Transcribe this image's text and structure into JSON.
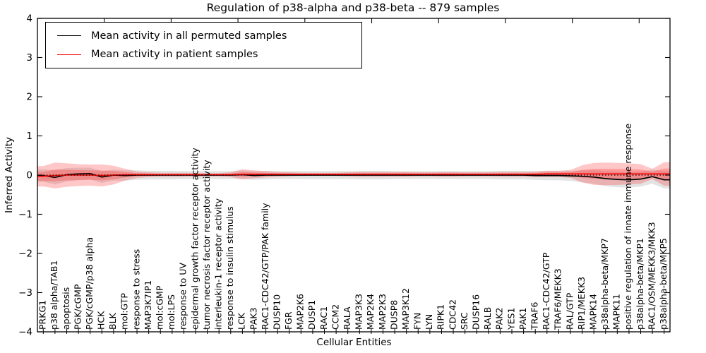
{
  "legend": {
    "entries": [
      {
        "label": "Mean activity in all permuted samples",
        "color": "#000000"
      },
      {
        "label": "Mean activity in patient samples",
        "color": "#ff0000"
      }
    ]
  },
  "chart_data": {
    "type": "line",
    "title": "Regulation of p38-alpha and p38-beta -- 879 samples",
    "xlabel": "Cellular Entities",
    "ylabel": "Inferred Activity",
    "ylim": [
      -4,
      4
    ],
    "yticks": [
      4,
      3,
      2,
      1,
      0,
      -1,
      -2,
      -3,
      -4
    ],
    "grid": false,
    "legend_position": "upper left",
    "zero_reference_line": 0,
    "band_colors": {
      "permuted": "rgba(0,0,0,0.11)",
      "patient": "rgba(255,0,0,0.22)"
    },
    "categories": [
      "PRKG1",
      "p38 alpha/TAB1",
      "apoptosis",
      "PGK/cGMP",
      "PGK/cGMP/p38 alpha",
      "HCK",
      "BLK",
      "mol:GTP",
      "response to stress",
      "MAP3K7IP1",
      "mol:cGMP",
      "mol:LPS",
      "response to UV",
      "epidermal growth factor receptor activity",
      "tumor necrosis factor receptor activity",
      "interleukin-1 receptor activity",
      "response to insulin stimulus",
      "LCK",
      "PAK3",
      "RAC1-CDC42/GTP/PAK family",
      "DUSP10",
      "FGR",
      "MAP2K6",
      "DUSP1",
      "RAC1",
      "CCM2",
      "RALA",
      "MAP3K3",
      "MAP2K4",
      "MAP2K3",
      "DUSP8",
      "MAP3K12",
      "FYN",
      "LYN",
      "RIPK1",
      "CDC42",
      "SRC",
      "DUSP16",
      "RALB",
      "PAK2",
      "YES1",
      "PAK1",
      "TRAF6",
      "RAC1-CDC42/GTP",
      "TRAF6/MEKK3",
      "RAL/GTP",
      "RIP1/MEKK3",
      "MAPK14",
      "p38alpha-beta/MKP7",
      "MAPK11",
      "positive regulation of innate immune response",
      "p38alpha-beta/MKP1",
      "RAC1/OSM/MEKK3/MKK3",
      "p38alpha-beta/MKP5"
    ],
    "series": [
      {
        "name": "Mean activity in all permuted samples",
        "color": "#000000",
        "values": [
          -0.01,
          -0.06,
          0.01,
          0.03,
          0.04,
          -0.05,
          0.0,
          -0.01,
          0.0,
          0.0,
          0.0,
          0.0,
          0.0,
          0.0,
          0.0,
          0.0,
          0.0,
          0.01,
          -0.01,
          0.0,
          0.0,
          0.0,
          0.0,
          0.0,
          0.0,
          0.0,
          0.0,
          0.0,
          0.0,
          0.0,
          0.0,
          0.0,
          0.0,
          0.0,
          0.0,
          0.0,
          0.0,
          0.0,
          0.0,
          0.0,
          0.0,
          0.0,
          -0.01,
          -0.01,
          -0.01,
          -0.02,
          -0.03,
          -0.05,
          -0.09,
          -0.11,
          -0.12,
          -0.1,
          -0.04,
          -0.12
        ],
        "std": [
          0.16,
          0.18,
          0.17,
          0.16,
          0.15,
          0.15,
          0.14,
          0.13,
          0.12,
          0.11,
          0.11,
          0.11,
          0.1,
          0.1,
          0.1,
          0.1,
          0.1,
          0.11,
          0.11,
          0.11,
          0.1,
          0.1,
          0.1,
          0.1,
          0.1,
          0.1,
          0.1,
          0.11,
          0.11,
          0.11,
          0.1,
          0.1,
          0.1,
          0.1,
          0.1,
          0.1,
          0.1,
          0.1,
          0.1,
          0.11,
          0.11,
          0.11,
          0.11,
          0.12,
          0.12,
          0.13,
          0.15,
          0.17,
          0.19,
          0.2,
          0.2,
          0.19,
          0.18,
          0.22
        ]
      },
      {
        "name": "Mean activity in patient samples",
        "color": "#ff0000",
        "values": [
          -0.03,
          -0.01,
          0.0,
          0.0,
          0.0,
          -0.01,
          0.0,
          0.01,
          0.01,
          0.01,
          0.01,
          0.01,
          0.01,
          0.01,
          0.01,
          0.01,
          0.01,
          0.02,
          0.02,
          0.02,
          0.02,
          0.02,
          0.02,
          0.02,
          0.02,
          0.02,
          0.02,
          0.02,
          0.02,
          0.02,
          0.02,
          0.02,
          0.02,
          0.02,
          0.02,
          0.02,
          0.02,
          0.02,
          0.02,
          0.02,
          0.02,
          0.02,
          0.02,
          0.03,
          0.03,
          0.03,
          0.03,
          0.03,
          0.03,
          0.03,
          0.03,
          0.03,
          0.03,
          0.03
        ],
        "std": [
          0.26,
          0.33,
          0.3,
          0.28,
          0.27,
          0.28,
          0.24,
          0.15,
          0.08,
          0.06,
          0.05,
          0.05,
          0.05,
          0.04,
          0.04,
          0.04,
          0.06,
          0.13,
          0.1,
          0.08,
          0.06,
          0.05,
          0.04,
          0.04,
          0.04,
          0.04,
          0.05,
          0.06,
          0.06,
          0.06,
          0.06,
          0.06,
          0.05,
          0.05,
          0.06,
          0.06,
          0.05,
          0.05,
          0.05,
          0.06,
          0.06,
          0.06,
          0.07,
          0.08,
          0.08,
          0.1,
          0.22,
          0.28,
          0.29,
          0.28,
          0.27,
          0.25,
          0.13,
          0.3
        ]
      }
    ]
  }
}
